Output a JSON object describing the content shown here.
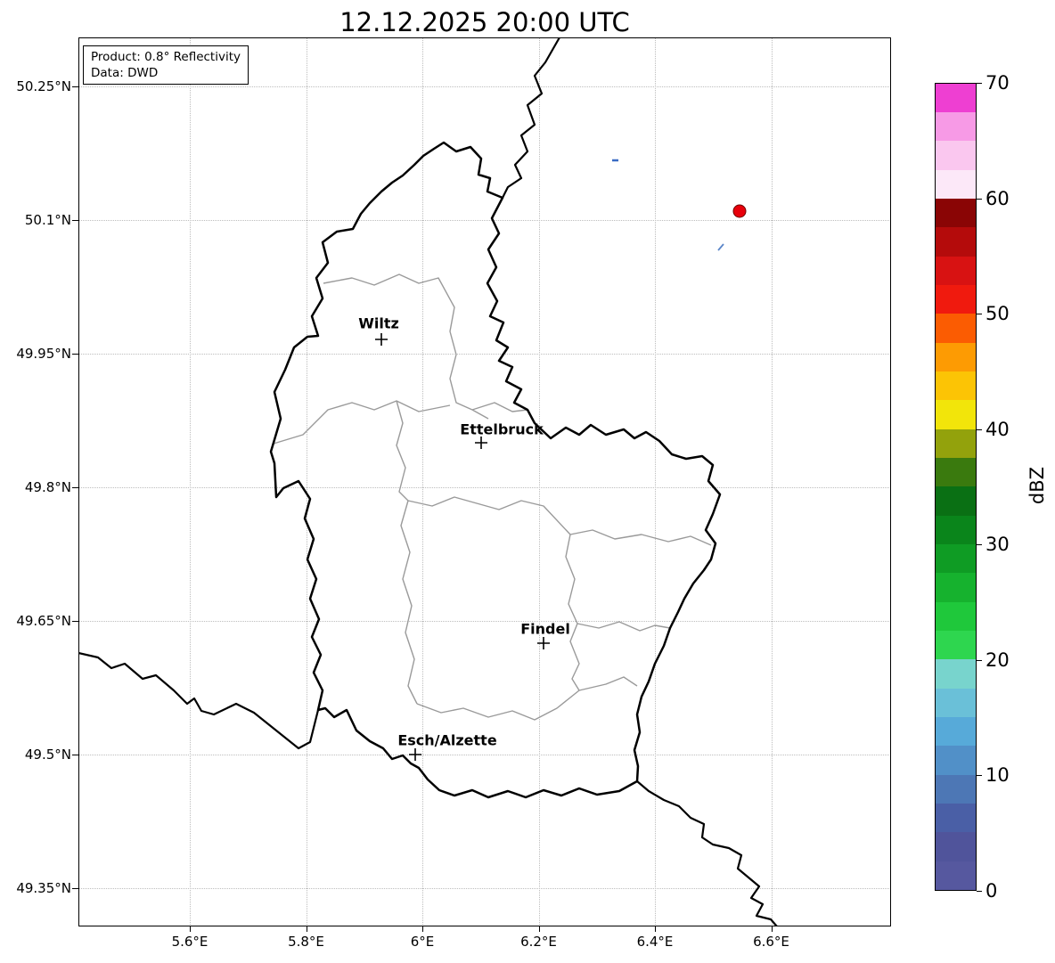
{
  "title": "12.12.2025 20:00 UTC",
  "info_box": {
    "product": "Product: 0.8° Reflectivity",
    "source": "Data: DWD"
  },
  "axes": {
    "x_ticks": [
      "5.6°E",
      "5.8°E",
      "6°E",
      "6.2°E",
      "6.4°E",
      "6.6°E"
    ],
    "y_ticks": [
      "50.25°N",
      "50.1°N",
      "49.95°N",
      "49.8°N",
      "49.65°N",
      "49.5°N",
      "49.35°N"
    ]
  },
  "map": {
    "cities": [
      {
        "name": "Wiltz",
        "lon": 5.93,
        "lat": 49.963
      },
      {
        "name": "Ettelbruck",
        "lon": 6.1,
        "lat": 49.85
      },
      {
        "name": "Findel",
        "lon": 6.21,
        "lat": 49.63
      },
      {
        "name": "Esch/Alzette",
        "lon": 5.98,
        "lat": 49.5
      }
    ]
  },
  "colorbar": {
    "label": "dBZ",
    "min": 0,
    "max": 70,
    "ticks": [
      "0",
      "10",
      "20",
      "30",
      "40",
      "50",
      "60",
      "70"
    ],
    "colors_bottom_to_top": [
      "#56589f",
      "#50549b",
      "#4a5fa6",
      "#4d77b5",
      "#5190c8",
      "#57aad9",
      "#6ac0d8",
      "#78d4cd",
      "#2ed64f",
      "#1fc83b",
      "#16b22e",
      "#0f9c24",
      "#0a851b",
      "#0a7014",
      "#3a7a0e",
      "#93a20c",
      "#f2e50a",
      "#fcc405",
      "#fd9b03",
      "#fb5c02",
      "#f01a0e",
      "#d81212",
      "#b40b0b",
      "#8a0505",
      "#fce8f8",
      "#fac7ef",
      "#f79ae6",
      "#ee3fd2"
    ]
  },
  "chart_data": {
    "type": "map",
    "title": "12.12.2025 20:00 UTC",
    "region": "Luxembourg radar composite view",
    "colorbar": {
      "label": "dBZ",
      "range": [
        0,
        70
      ],
      "ticks": [
        0,
        10,
        20,
        30,
        40,
        50,
        60,
        70
      ]
    },
    "echoes": [
      {
        "lon": 6.55,
        "lat": 50.11,
        "color": "red (~50 dBZ)",
        "shape": "dot"
      },
      {
        "lon": 6.33,
        "lat": 50.17,
        "color": "blue (low dBZ)",
        "shape": "speck"
      },
      {
        "lon": 6.51,
        "lat": 50.07,
        "color": "blue (low dBZ)",
        "shape": "speck"
      }
    ]
  }
}
